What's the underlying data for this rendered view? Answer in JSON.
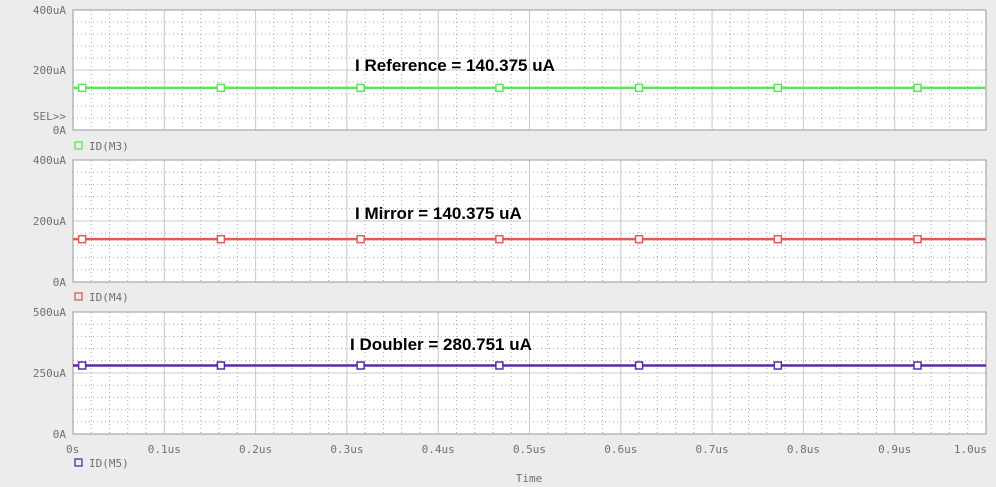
{
  "chart_data": [
    {
      "type": "line",
      "ylim": [
        0,
        400
      ],
      "y_tick_labels": [
        "0A",
        "200uA",
        "400uA"
      ],
      "y_tick_values": [
        0,
        200,
        400
      ],
      "xlim": [
        0,
        1.0
      ],
      "grid": true,
      "selected_marker": "SEL>>",
      "series": [
        {
          "name": "ID(M3)",
          "color": "#59e659",
          "marker": "square",
          "x": [
            0,
            1.0
          ],
          "y": [
            140.375,
            140.375
          ]
        }
      ],
      "annotation": "I Reference = 140.375 uA"
    },
    {
      "type": "line",
      "ylim": [
        0,
        400
      ],
      "y_tick_labels": [
        "0A",
        "200uA",
        "400uA"
      ],
      "y_tick_values": [
        0,
        200,
        400
      ],
      "xlim": [
        0,
        1.0
      ],
      "grid": true,
      "series": [
        {
          "name": "ID(M4)",
          "color": "#e05a5a",
          "marker": "square",
          "x": [
            0,
            1.0
          ],
          "y": [
            140.375,
            140.375
          ]
        }
      ],
      "annotation": "I Mirror = 140.375 uA"
    },
    {
      "type": "line",
      "ylim": [
        0,
        500
      ],
      "y_tick_labels": [
        "0A",
        "250uA",
        "500uA"
      ],
      "y_tick_values": [
        0,
        250,
        500
      ],
      "xlim": [
        0,
        1.0
      ],
      "grid": true,
      "series": [
        {
          "name": "ID(M5)",
          "color": "#5a2aa8",
          "marker": "square",
          "x": [
            0,
            1.0
          ],
          "y": [
            280.751,
            280.751
          ]
        }
      ],
      "annotation": "I Doubler = 280.751 uA"
    }
  ],
  "x_axis": {
    "label": "Time",
    "tick_values": [
      0,
      0.1,
      0.2,
      0.3,
      0.4,
      0.5,
      0.6,
      0.7,
      0.8,
      0.9,
      1.0
    ],
    "tick_labels": [
      "0s",
      "0.1us",
      "0.2us",
      "0.3us",
      "0.4us",
      "0.5us",
      "0.6us",
      "0.7us",
      "0.8us",
      "0.9us",
      "1.0us"
    ]
  },
  "marker_x_values": [
    0.01,
    0.162,
    0.315,
    0.467,
    0.62,
    0.772,
    0.925
  ],
  "colors": {
    "background": "#ececec",
    "plot_background": "#ffffff",
    "grid_major": "#c8c8c8",
    "grid_minor": "#a8a8a8",
    "frame": "#999999",
    "text": "#707070"
  }
}
